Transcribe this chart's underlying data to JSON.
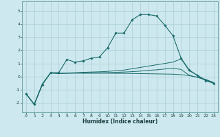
{
  "xlabel": "Humidex (Indice chaleur)",
  "bg_color": "#cde8ee",
  "grid_color": "#aacdd6",
  "line_color": "#1a6b6b",
  "xlim": [
    -0.5,
    23.5
  ],
  "ylim": [
    -2.7,
    5.7
  ],
  "yticks": [
    -2,
    -1,
    0,
    1,
    2,
    3,
    4,
    5
  ],
  "xticks": [
    0,
    1,
    2,
    3,
    4,
    5,
    6,
    7,
    8,
    9,
    10,
    11,
    12,
    13,
    14,
    15,
    16,
    17,
    18,
    19,
    20,
    21,
    22,
    23
  ],
  "series1_x": [
    0,
    1,
    2,
    3,
    4,
    5,
    6,
    7,
    8,
    9,
    10,
    11,
    12,
    13,
    14,
    15,
    16,
    17,
    18,
    19,
    20,
    21,
    22,
    23
  ],
  "series1_y": [
    -1.3,
    -2.1,
    -0.6,
    0.3,
    0.3,
    1.3,
    1.1,
    1.2,
    1.4,
    1.5,
    2.2,
    3.3,
    3.3,
    4.3,
    4.7,
    4.7,
    4.6,
    3.9,
    3.1,
    1.4,
    0.5,
    0.1,
    -0.3,
    -0.5
  ],
  "series2_x": [
    0,
    1,
    2,
    3,
    4,
    5,
    6,
    7,
    8,
    9,
    10,
    11,
    12,
    13,
    14,
    15,
    16,
    17,
    18,
    19,
    20,
    21,
    22,
    23
  ],
  "series2_y": [
    -1.3,
    -2.1,
    -0.55,
    0.28,
    0.25,
    0.28,
    0.3,
    0.33,
    0.35,
    0.37,
    0.4,
    0.45,
    0.5,
    0.6,
    0.7,
    0.8,
    0.9,
    1.0,
    1.1,
    1.35,
    0.45,
    0.1,
    -0.25,
    -0.5
  ],
  "series3_x": [
    0,
    1,
    2,
    3,
    4,
    5,
    6,
    7,
    8,
    9,
    10,
    11,
    12,
    13,
    14,
    15,
    16,
    17,
    18,
    19,
    20,
    21,
    22,
    23
  ],
  "series3_y": [
    -1.3,
    -2.1,
    -0.55,
    0.28,
    0.25,
    0.26,
    0.27,
    0.28,
    0.29,
    0.3,
    0.31,
    0.33,
    0.35,
    0.38,
    0.42,
    0.48,
    0.52,
    0.58,
    0.63,
    0.55,
    0.1,
    -0.05,
    -0.25,
    -0.45
  ],
  "series4_x": [
    0,
    1,
    2,
    3,
    4,
    5,
    6,
    7,
    8,
    9,
    10,
    11,
    12,
    13,
    14,
    15,
    16,
    17,
    18,
    19,
    20,
    21,
    22,
    23
  ],
  "series4_y": [
    -1.3,
    -2.1,
    -0.55,
    0.28,
    0.25,
    0.26,
    0.27,
    0.26,
    0.26,
    0.26,
    0.26,
    0.25,
    0.25,
    0.24,
    0.23,
    0.22,
    0.21,
    0.2,
    0.19,
    0.15,
    0.08,
    -0.05,
    -0.2,
    -0.45
  ]
}
